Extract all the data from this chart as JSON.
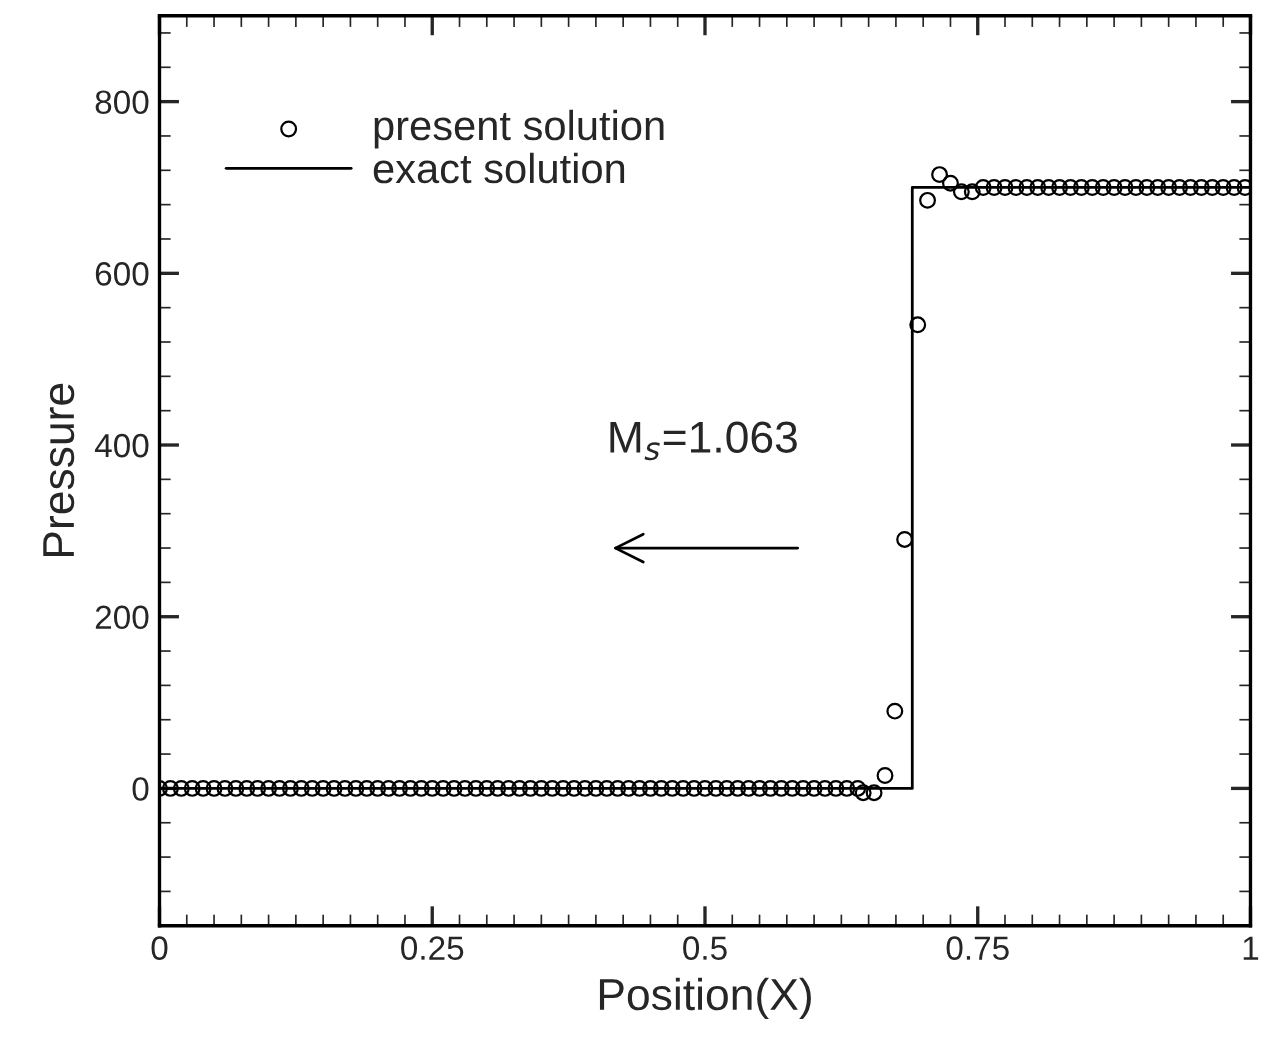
{
  "chart_data": {
    "type": "scatter",
    "xlabel": "Position(X)",
    "ylabel": "Pressure",
    "xlim": [
      0,
      1
    ],
    "ylim": [
      -160,
      900
    ],
    "xticks": [
      0,
      0.25,
      0.5,
      0.75,
      1
    ],
    "yticks": [
      0,
      200,
      400,
      600,
      800
    ],
    "legend": "top left",
    "grid": false,
    "annotations": [
      "M$_{s}$=1.063"
    ],
    "series": [
      {
        "name": "present solution",
        "marker": "circle",
        "color": "#000000",
        "x": [
          0,
          0.01,
          0.02,
          0.03,
          0.04,
          0.05,
          0.06,
          0.07,
          0.08,
          0.09,
          0.1,
          0.11,
          0.12,
          0.13,
          0.14,
          0.15,
          0.16,
          0.17,
          0.18,
          0.19,
          0.2,
          0.21,
          0.22,
          0.23,
          0.24,
          0.25,
          0.26,
          0.27,
          0.28,
          0.29,
          0.3,
          0.31,
          0.32,
          0.33,
          0.34,
          0.35,
          0.36,
          0.37,
          0.38,
          0.39,
          0.4,
          0.41,
          0.42,
          0.43,
          0.44,
          0.45,
          0.46,
          0.47,
          0.48,
          0.49,
          0.5,
          0.51,
          0.52,
          0.53,
          0.54,
          0.55,
          0.56,
          0.57,
          0.58,
          0.59,
          0.6,
          0.61,
          0.62,
          0.63,
          0.64,
          0.645,
          0.655,
          0.665,
          0.674,
          0.683,
          0.695,
          0.704,
          0.715,
          0.725,
          0.735,
          0.745,
          0.755,
          0.765,
          0.775,
          0.785,
          0.795,
          0.805,
          0.815,
          0.825,
          0.835,
          0.845,
          0.855,
          0.865,
          0.875,
          0.885,
          0.895,
          0.905,
          0.915,
          0.925,
          0.935,
          0.945,
          0.955,
          0.965,
          0.975,
          0.985,
          0.995
        ],
        "values": [
          0,
          0,
          0,
          0,
          0,
          0,
          0,
          0,
          0,
          0,
          0,
          0,
          0,
          0,
          0,
          0,
          0,
          0,
          0,
          0,
          0,
          0,
          0,
          0,
          0,
          0,
          0,
          0,
          0,
          0,
          0,
          0,
          0,
          0,
          0,
          0,
          0,
          0,
          0,
          0,
          0,
          0,
          0,
          0,
          0,
          0,
          0,
          0,
          0,
          0,
          0,
          0,
          0,
          0,
          0,
          0,
          0,
          0,
          0,
          0,
          0,
          0,
          0,
          0,
          0,
          -5,
          -5,
          15,
          90,
          290,
          540,
          685,
          715,
          705,
          695,
          695,
          700,
          700,
          700,
          700,
          700,
          700,
          700,
          700,
          700,
          700,
          700,
          700,
          700,
          700,
          700,
          700,
          700,
          700,
          700,
          700,
          700,
          700,
          700,
          700,
          700
        ]
      },
      {
        "name": "exact solution",
        "type": "line",
        "line_style": "solid",
        "color": "#000000",
        "x": [
          0,
          0.69,
          0.69,
          1
        ],
        "values": [
          0,
          0,
          700,
          700
        ]
      }
    ]
  }
}
